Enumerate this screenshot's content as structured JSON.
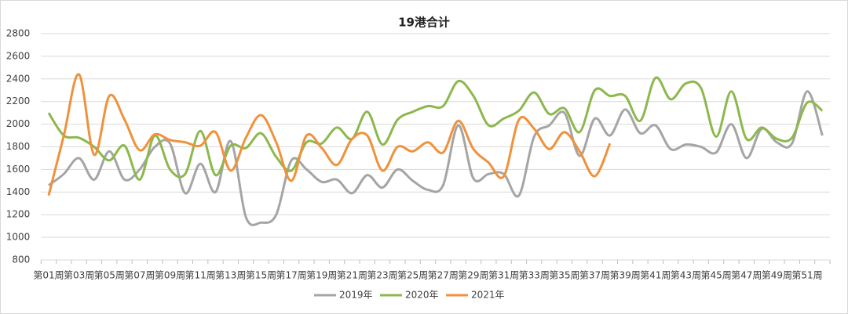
{
  "chart_data": {
    "type": "line",
    "title": "19港合计",
    "categories": [
      "第01周",
      null,
      "第03周",
      null,
      "第05周",
      null,
      "第07周",
      null,
      "第09周",
      null,
      "第11周",
      null,
      "第13周",
      null,
      "第15周",
      null,
      "第17周",
      null,
      "第19周",
      null,
      "第21周",
      null,
      "第23周",
      null,
      "第25周",
      null,
      "第27周",
      null,
      "第29周",
      null,
      "第31周",
      null,
      "第33周",
      null,
      "第35周",
      null,
      "第37周",
      null,
      "第39周",
      null,
      "第41周",
      null,
      "第43周",
      null,
      "第45周",
      null,
      "第47周",
      null,
      "第49周",
      null,
      "第51周",
      null
    ],
    "series": [
      {
        "name": "2019年",
        "color": "#a5a5a5",
        "values": [
          1460,
          1560,
          1700,
          1510,
          1760,
          1510,
          1600,
          1800,
          1830,
          1390,
          1650,
          1400,
          1850,
          1180,
          1130,
          1200,
          1680,
          1600,
          1490,
          1510,
          1390,
          1550,
          1440,
          1600,
          1500,
          1420,
          1460,
          1990,
          1520,
          1560,
          1560,
          1370,
          1890,
          1990,
          2100,
          1720,
          2050,
          1900,
          2130,
          1920,
          1990,
          1780,
          1820,
          1800,
          1750,
          2000,
          1700,
          1960,
          1840,
          1830,
          2290,
          1900
        ]
      },
      {
        "name": "2020年",
        "color": "#8cb84d",
        "values": [
          2100,
          1900,
          1880,
          1800,
          1680,
          1810,
          1510,
          1900,
          1600,
          1560,
          1940,
          1550,
          1810,
          1790,
          1920,
          1710,
          1590,
          1840,
          1830,
          1970,
          1870,
          2110,
          1820,
          2040,
          2110,
          2160,
          2160,
          2380,
          2250,
          1990,
          2050,
          2120,
          2280,
          2090,
          2140,
          1930,
          2300,
          2250,
          2250,
          2030,
          2410,
          2220,
          2360,
          2320,
          1890,
          2290,
          1870,
          1970,
          1870,
          1880,
          2190,
          2120
        ]
      },
      {
        "name": "2021年",
        "color": "#f0913c",
        "values": [
          1370,
          1900,
          2440,
          1730,
          2250,
          2040,
          1770,
          1910,
          1860,
          1840,
          1810,
          1930,
          1590,
          1880,
          2080,
          1840,
          1500,
          1900,
          1790,
          1640,
          1870,
          1900,
          1590,
          1800,
          1760,
          1840,
          1750,
          2030,
          1780,
          1660,
          1540,
          2040,
          1960,
          1780,
          1930,
          1760,
          1540,
          1830,
          null,
          null,
          null,
          null,
          null,
          null,
          null,
          null,
          null,
          null,
          null,
          null,
          null,
          null
        ]
      }
    ],
    "ylim": [
      800,
      2800
    ],
    "yticks": [
      800,
      1000,
      1200,
      1400,
      1600,
      1800,
      2000,
      2200,
      2400,
      2600,
      2800
    ],
    "grid": true,
    "legend": "bottom"
  }
}
